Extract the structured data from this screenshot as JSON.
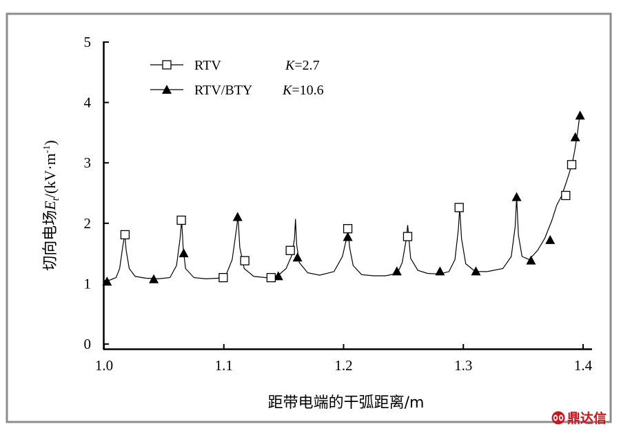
{
  "chart_data": {
    "type": "line",
    "xlabel": "距带电端的干弧距离/m",
    "ylabel": {
      "main": "切向电场",
      "sym": "E",
      "sub": "t",
      "unit_open": "/(kV·m",
      "unit_sup": "-1",
      "unit_close": ")"
    },
    "xlim": [
      1.0,
      1.4
    ],
    "ylim": [
      0,
      5
    ],
    "x_ticks": [
      "1.0",
      "1.1",
      "1.2",
      "1.3",
      "1.4"
    ],
    "y_ticks": [
      "0",
      "1",
      "2",
      "3",
      "4",
      "5"
    ],
    "grid": false,
    "legend_position": "top-left",
    "curve": {
      "x": [
        1.0,
        1.005,
        1.01,
        1.013,
        1.0155,
        1.0172,
        1.0185,
        1.021,
        1.026,
        1.035,
        1.045,
        1.055,
        1.0605,
        1.0635,
        1.0648,
        1.066,
        1.068,
        1.075,
        1.085,
        1.095,
        1.102,
        1.107,
        1.1105,
        1.1118,
        1.1133,
        1.117,
        1.125,
        1.135,
        1.145,
        1.152,
        1.157,
        1.159,
        1.1598,
        1.1608,
        1.163,
        1.17,
        1.18,
        1.192,
        1.199,
        1.2025,
        1.2037,
        1.205,
        1.208,
        1.215,
        1.225,
        1.235,
        1.245,
        1.249,
        1.2525,
        1.2535,
        1.256,
        1.262,
        1.27,
        1.28,
        1.288,
        1.293,
        1.2958,
        1.297,
        1.2985,
        1.302,
        1.31,
        1.32,
        1.333,
        1.34,
        1.3433,
        1.3445,
        1.346,
        1.349,
        1.355,
        1.362,
        1.368,
        1.374,
        1.378,
        1.382,
        1.385,
        1.388,
        1.391,
        1.393,
        1.395,
        1.397
      ],
      "y": [
        1.05,
        1.06,
        1.1,
        1.25,
        1.6,
        1.82,
        1.55,
        1.25,
        1.12,
        1.09,
        1.08,
        1.1,
        1.3,
        1.75,
        2.05,
        1.6,
        1.25,
        1.1,
        1.08,
        1.09,
        1.15,
        1.4,
        1.9,
        2.12,
        1.6,
        1.25,
        1.12,
        1.1,
        1.13,
        1.25,
        1.48,
        1.75,
        2.07,
        1.65,
        1.35,
        1.18,
        1.14,
        1.2,
        1.45,
        1.75,
        1.9,
        1.6,
        1.3,
        1.15,
        1.13,
        1.13,
        1.17,
        1.35,
        1.75,
        1.97,
        1.42,
        1.22,
        1.17,
        1.16,
        1.2,
        1.4,
        1.9,
        2.25,
        1.75,
        1.33,
        1.2,
        1.2,
        1.25,
        1.45,
        1.95,
        2.43,
        1.8,
        1.45,
        1.4,
        1.55,
        1.75,
        2.05,
        2.3,
        2.45,
        2.62,
        2.8,
        3.0,
        3.2,
        3.45,
        3.75
      ]
    },
    "series": [
      {
        "name": "RTV",
        "k_label": "K",
        "k_value": "=2.7",
        "marker": "open-square",
        "x": [
          1.0175,
          1.0645,
          1.0995,
          1.1175,
          1.1395,
          1.1555,
          1.2035,
          1.2535,
          1.2965,
          1.3855,
          1.3905
        ],
        "y": [
          1.81,
          2.05,
          1.1,
          1.38,
          1.1,
          1.55,
          1.91,
          1.78,
          2.26,
          2.46,
          2.97
        ]
      },
      {
        "name": "RTV/BTY",
        "k_label": "K",
        "k_value": "=10.6",
        "marker": "filled-triangle",
        "x": [
          1.0025,
          1.0415,
          1.0665,
          1.1115,
          1.1455,
          1.1615,
          1.2035,
          1.2445,
          1.2805,
          1.3105,
          1.3445,
          1.3565,
          1.3725,
          1.3935,
          1.3975
        ],
        "y": [
          1.03,
          1.07,
          1.5,
          2.1,
          1.12,
          1.43,
          1.77,
          1.2,
          1.2,
          1.2,
          2.43,
          1.38,
          1.72,
          3.42,
          3.78
        ]
      }
    ]
  },
  "watermark": {
    "logo": "鼎达信"
  },
  "colors": {
    "frame": "#8c8c8c",
    "ink": "#000000",
    "watermark": "#c8161d"
  }
}
